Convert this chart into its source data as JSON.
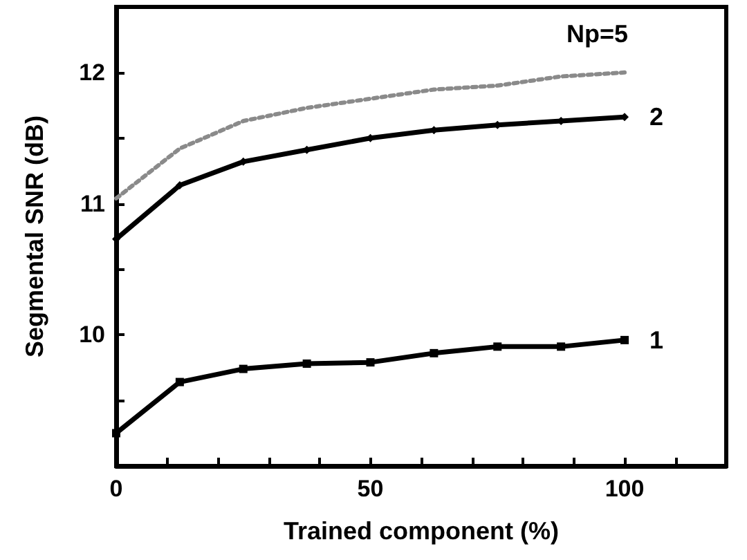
{
  "chart_data": {
    "type": "line",
    "xlabel": "Trained component (%)",
    "ylabel": "Segmental SNR (dB)",
    "x": [
      0,
      12.5,
      25,
      37.5,
      50,
      62.5,
      75,
      87.5,
      100
    ],
    "series": [
      {
        "name": "Np=5",
        "color": "#8a8a8a",
        "marker": "none",
        "line_style": "dotted",
        "values": [
          11.04,
          11.42,
          11.63,
          11.73,
          11.8,
          11.87,
          11.9,
          11.97,
          12.0
        ]
      },
      {
        "name": "2",
        "color": "#000000",
        "marker": "diamond",
        "line_style": "solid",
        "values": [
          10.73,
          11.14,
          11.32,
          11.41,
          11.5,
          11.56,
          11.6,
          11.63,
          11.66
        ]
      },
      {
        "name": "1",
        "color": "#000000",
        "marker": "square",
        "line_style": "solid",
        "values": [
          9.25,
          9.64,
          9.74,
          9.78,
          9.79,
          9.86,
          9.91,
          9.91,
          9.96
        ]
      }
    ],
    "xlim": [
      0,
      120
    ],
    "xticks": [
      0,
      {
        "value": 10,
        "label": null
      },
      {
        "value": 20,
        "label": null
      },
      {
        "value": 30,
        "label": null
      },
      {
        "value": 40,
        "label": null
      },
      50,
      {
        "value": 60,
        "label": null
      },
      {
        "value": 70,
        "label": null
      },
      {
        "value": 80,
        "label": null
      },
      {
        "value": 90,
        "label": null
      },
      100,
      {
        "value": 110,
        "label": null
      }
    ],
    "ylim": [
      9,
      12.5
    ],
    "yticks": [
      {
        "value": 9.5,
        "label": null
      },
      10,
      {
        "value": 10.5,
        "label": null
      },
      11,
      {
        "value": 11.5,
        "label": null
      },
      12
    ],
    "grid": false,
    "legend": false
  }
}
